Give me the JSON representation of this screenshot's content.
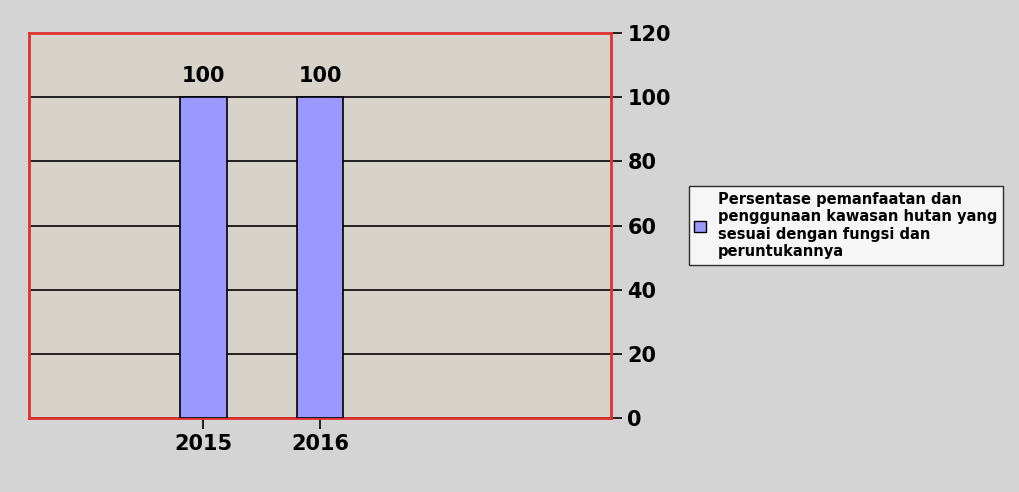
{
  "chart_data": {
    "type": "bar",
    "categories": [
      null,
      "2015",
      "2016",
      null,
      null
    ],
    "values": [
      null,
      100,
      100,
      null,
      null
    ],
    "series_name": "Persentase pemanfaatan dan penggunaan kawasan hutan yang sesuai dengan fungsi dan peruntukannya",
    "color": "#9999ff",
    "ylim": [
      0,
      120
    ],
    "yticks": [
      0,
      20,
      40,
      60,
      80,
      100,
      120
    ],
    "grid": true,
    "data_labels": true,
    "legend": "right"
  }
}
